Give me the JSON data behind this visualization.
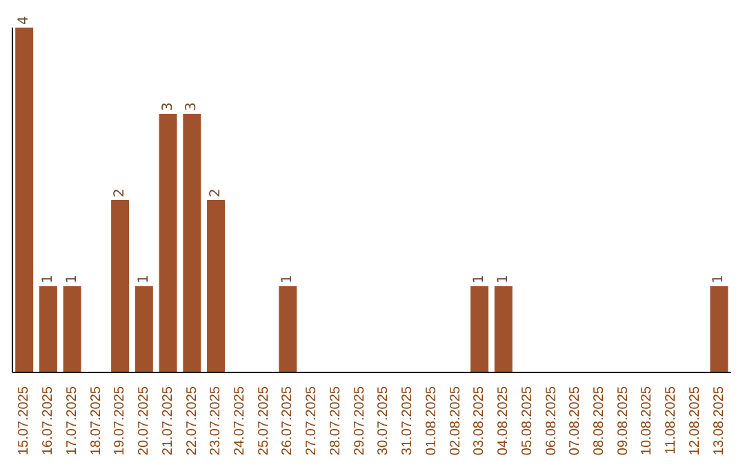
{
  "chart_data": {
    "type": "bar",
    "categories": [
      "15.07.2025",
      "16.07.2025",
      "17.07.2025",
      "18.07.2025",
      "19.07.2025",
      "20.07.2025",
      "21.07.2025",
      "22.07.2025",
      "23.07.2025",
      "24.07.2025",
      "25.07.2025",
      "26.07.2025",
      "27.07.2025",
      "28.07.2025",
      "29.07.2025",
      "30.07.2025",
      "31.07.2025",
      "01.08.2025",
      "02.08.2025",
      "03.08.2025",
      "04.08.2025",
      "05.08.2025",
      "06.08.2025",
      "07.08.2025",
      "08.08.2025",
      "09.08.2025",
      "10.08.2025",
      "11.08.2025",
      "12.08.2025",
      "13.08.2025"
    ],
    "values": [
      4,
      1,
      1,
      0,
      2,
      1,
      3,
      3,
      2,
      0,
      0,
      1,
      0,
      0,
      0,
      0,
      0,
      0,
      0,
      1,
      1,
      0,
      0,
      0,
      0,
      0,
      0,
      0,
      0,
      1
    ],
    "value_labels": [
      "4",
      "1",
      "1",
      null,
      "2",
      "1",
      "3",
      "3",
      "2",
      null,
      null,
      "1",
      null,
      null,
      null,
      null,
      null,
      null,
      null,
      "1",
      "1",
      null,
      null,
      null,
      null,
      null,
      null,
      null,
      null,
      "1"
    ],
    "color": "#a0522d",
    "tick_labels": "x",
    "grid": false,
    "legend": false
  }
}
